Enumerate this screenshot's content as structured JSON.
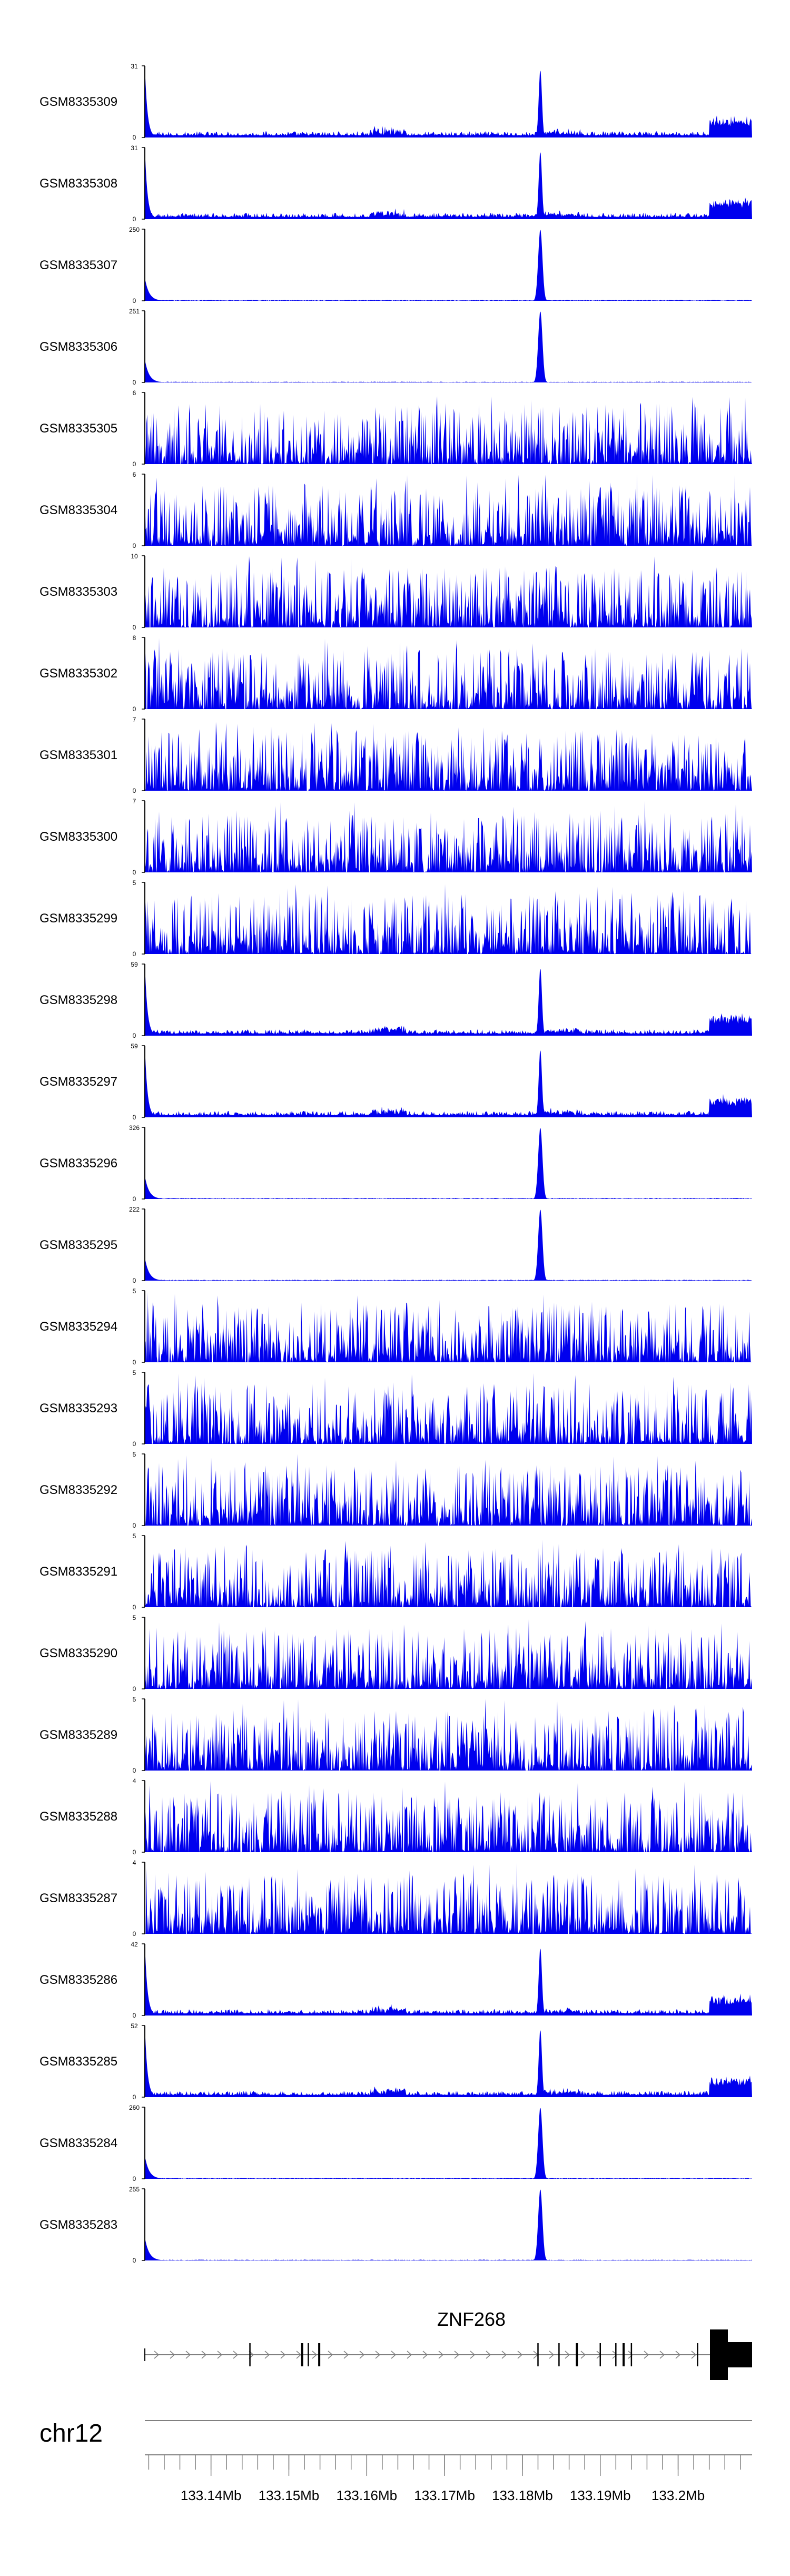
{
  "chart_data": {
    "type": "area",
    "title": "",
    "genome_region": {
      "chromosome": "chr12",
      "xlim": [
        133.1315,
        133.2095
      ],
      "xlim_unit": "Mb",
      "xticks": [
        133.14,
        133.15,
        133.16,
        133.17,
        133.18,
        133.19,
        133.2
      ],
      "xtick_labels": [
        "133.14Mb",
        "133.15Mb",
        "133.16Mb",
        "133.17Mb",
        "133.18Mb",
        "133.19Mb",
        "133.2Mb"
      ]
    },
    "gene": {
      "name": "ZNF268",
      "strand": "+",
      "start": 133.1315,
      "end": 133.2095,
      "exons": [
        133.145,
        133.1517,
        133.1525,
        133.1539,
        133.182,
        133.1847,
        133.187,
        133.19,
        133.192,
        133.193,
        133.194,
        133.2025
      ]
    },
    "peak_positions": [
      133.1315,
      133.1823
    ],
    "series": [
      {
        "name": "GSM8335309",
        "ymax": 31,
        "ymin": 0,
        "profile": "broad"
      },
      {
        "name": "GSM8335308",
        "ymax": 31,
        "ymin": 0,
        "profile": "broad"
      },
      {
        "name": "GSM8335307",
        "ymax": 250,
        "ymin": 0,
        "profile": "sharp"
      },
      {
        "name": "GSM8335306",
        "ymax": 251,
        "ymin": 0,
        "profile": "sharp"
      },
      {
        "name": "GSM8335305",
        "ymax": 6,
        "ymin": 0,
        "profile": "noise"
      },
      {
        "name": "GSM8335304",
        "ymax": 6,
        "ymin": 0,
        "profile": "noise"
      },
      {
        "name": "GSM8335303",
        "ymax": 10,
        "ymin": 0,
        "profile": "noise"
      },
      {
        "name": "GSM8335302",
        "ymax": 8,
        "ymin": 0,
        "profile": "noise"
      },
      {
        "name": "GSM8335301",
        "ymax": 7,
        "ymin": 0,
        "profile": "noise"
      },
      {
        "name": "GSM8335300",
        "ymax": 7,
        "ymin": 0,
        "profile": "noise"
      },
      {
        "name": "GSM8335299",
        "ymax": 5,
        "ymin": 0,
        "profile": "noise"
      },
      {
        "name": "GSM8335298",
        "ymax": 59,
        "ymin": 0,
        "profile": "broad"
      },
      {
        "name": "GSM8335297",
        "ymax": 59,
        "ymin": 0,
        "profile": "broad"
      },
      {
        "name": "GSM8335296",
        "ymax": 326,
        "ymin": 0,
        "profile": "sharp"
      },
      {
        "name": "GSM8335295",
        "ymax": 222,
        "ymin": 0,
        "profile": "sharp"
      },
      {
        "name": "GSM8335294",
        "ymax": 5,
        "ymin": 0,
        "profile": "noise"
      },
      {
        "name": "GSM8335293",
        "ymax": 5,
        "ymin": 0,
        "profile": "noise"
      },
      {
        "name": "GSM8335292",
        "ymax": 5,
        "ymin": 0,
        "profile": "noise"
      },
      {
        "name": "GSM8335291",
        "ymax": 5,
        "ymin": 0,
        "profile": "noise"
      },
      {
        "name": "GSM8335290",
        "ymax": 5,
        "ymin": 0,
        "profile": "noise"
      },
      {
        "name": "GSM8335289",
        "ymax": 5,
        "ymin": 0,
        "profile": "noise"
      },
      {
        "name": "GSM8335288",
        "ymax": 4,
        "ymin": 0,
        "profile": "noise"
      },
      {
        "name": "GSM8335287",
        "ymax": 4,
        "ymin": 0,
        "profile": "noise"
      },
      {
        "name": "GSM8335286",
        "ymax": 42,
        "ymin": 0,
        "profile": "broad"
      },
      {
        "name": "GSM8335285",
        "ymax": 52,
        "ymin": 0,
        "profile": "broad"
      },
      {
        "name": "GSM8335284",
        "ymax": 260,
        "ymin": 0,
        "profile": "sharp"
      },
      {
        "name": "GSM8335283",
        "ymax": 255,
        "ymin": 0,
        "profile": "sharp"
      }
    ]
  },
  "colors": {
    "signal": "#0000ee",
    "axis": "#000000",
    "gene": "#000000",
    "gene_line": "#808080",
    "ruler": "#808080",
    "background": "#ffffff"
  }
}
